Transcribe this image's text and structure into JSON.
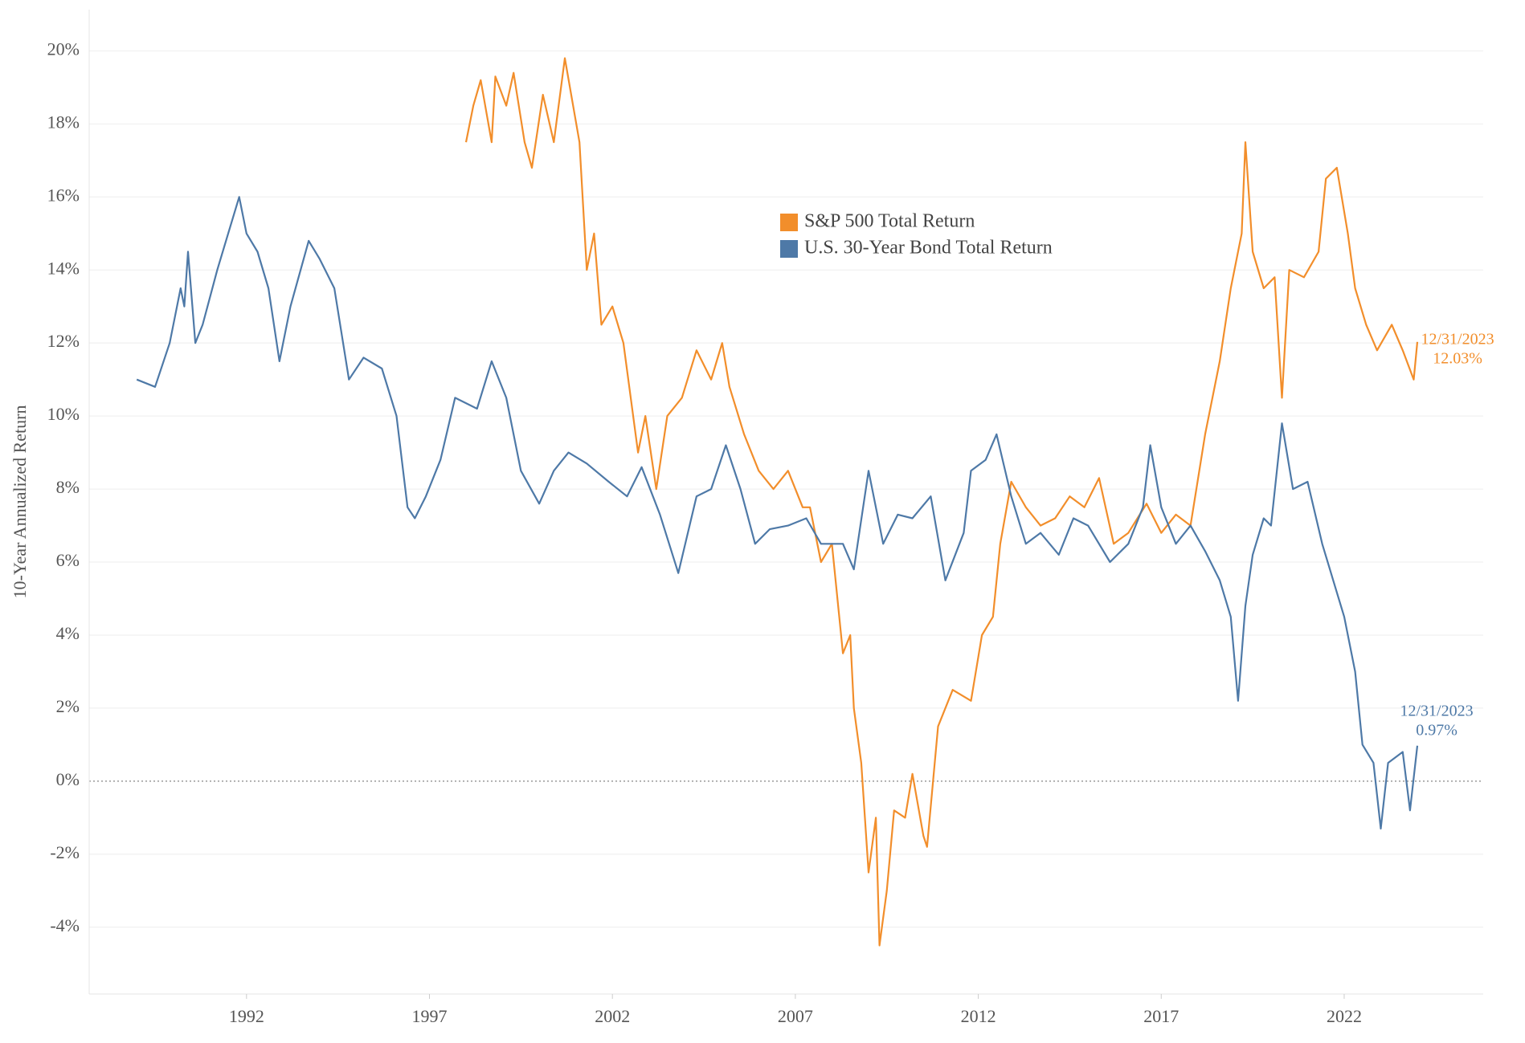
{
  "chart_data": {
    "type": "line",
    "y_label": "10-Year Annualized Return",
    "xlim": [
      1987.7,
      2025.8
    ],
    "xticks": [
      1992,
      1997,
      2002,
      2007,
      2012,
      2017,
      2022
    ],
    "ylim": [
      -5.83,
      21.13
    ],
    "yticks": [
      {
        "value": -4,
        "label": "-4%"
      },
      {
        "value": -2,
        "label": "-2%"
      },
      {
        "value": 0,
        "label": "0%"
      },
      {
        "value": 2,
        "label": "2%"
      },
      {
        "value": 4,
        "label": "4%"
      },
      {
        "value": 6,
        "label": "6%"
      },
      {
        "value": 8,
        "label": "8%"
      },
      {
        "value": 10,
        "label": "10%"
      },
      {
        "value": 12,
        "label": "12%"
      },
      {
        "value": 14,
        "label": "14%"
      },
      {
        "value": 16,
        "label": "16%"
      },
      {
        "value": 18,
        "label": "18%"
      },
      {
        "value": 20,
        "label": "20%"
      }
    ],
    "grid": true,
    "legend": "top-center",
    "series": [
      {
        "name": "S&P 500 Total Return",
        "color": "#f28e2b",
        "annotation": [
          "12/31/2023",
          "12.03%"
        ],
        "x": [
          1998.0,
          1998.2,
          1998.4,
          1998.7,
          1998.8,
          1999.1,
          1999.3,
          1999.6,
          1999.8,
          2000.1,
          2000.4,
          2000.7,
          2001.1,
          2001.3,
          2001.5,
          2001.7,
          2002.0,
          2002.3,
          2002.5,
          2002.7,
          2002.9,
          2003.2,
          2003.5,
          2003.9,
          2004.3,
          2004.7,
          2005.0,
          2005.2,
          2005.6,
          2006.0,
          2006.4,
          2006.8,
          2007.2,
          2007.4,
          2007.7,
          2008.0,
          2008.3,
          2008.5,
          2008.6,
          2008.8,
          2009.0,
          2009.2,
          2009.3,
          2009.5,
          2009.7,
          2010.0,
          2010.2,
          2010.5,
          2010.6,
          2010.9,
          2011.3,
          2011.8,
          2012.1,
          2012.4,
          2012.6,
          2012.9,
          2013.3,
          2013.7,
          2014.1,
          2014.5,
          2014.9,
          2015.3,
          2015.7,
          2016.1,
          2016.6,
          2017.0,
          2017.4,
          2017.8,
          2018.2,
          2018.6,
          2018.9,
          2019.2,
          2019.3,
          2019.5,
          2019.8,
          2020.1,
          2020.3,
          2020.5,
          2020.9,
          2021.3,
          2021.5,
          2021.8,
          2022.1,
          2022.3,
          2022.6,
          2022.9,
          2023.3,
          2023.6,
          2023.9,
          2024.0
        ],
        "values": [
          17.5,
          18.5,
          19.2,
          17.5,
          19.3,
          18.5,
          19.4,
          17.5,
          16.8,
          18.8,
          17.5,
          19.8,
          17.5,
          14.0,
          15.0,
          12.5,
          13.0,
          12.0,
          10.5,
          9.0,
          10.0,
          8.0,
          10.0,
          10.5,
          11.8,
          11.0,
          12.0,
          10.8,
          9.5,
          8.5,
          8.0,
          8.5,
          7.5,
          7.5,
          6.0,
          6.5,
          3.5,
          4.0,
          2.0,
          0.5,
          -2.5,
          -1.0,
          -4.5,
          -3.0,
          -0.8,
          -1.0,
          0.2,
          -1.5,
          -1.8,
          1.5,
          2.5,
          2.2,
          4.0,
          4.5,
          6.5,
          8.2,
          7.5,
          7.0,
          7.2,
          7.8,
          7.5,
          8.3,
          6.5,
          6.8,
          7.6,
          6.8,
          7.3,
          7.0,
          9.5,
          11.5,
          13.5,
          15.0,
          17.5,
          14.5,
          13.5,
          13.8,
          10.5,
          14.0,
          13.8,
          14.5,
          16.5,
          16.8,
          15.0,
          13.5,
          12.5,
          11.8,
          12.5,
          11.8,
          11.0,
          12.03
        ]
      },
      {
        "name": "U.S. 30-Year Bond Total Return",
        "color": "#4e79a7",
        "annotation": [
          "12/31/2023",
          "0.97%"
        ],
        "x": [
          1989.0,
          1989.5,
          1989.9,
          1990.2,
          1990.3,
          1990.4,
          1990.6,
          1990.8,
          1991.2,
          1991.5,
          1991.8,
          1992.0,
          1992.3,
          1992.6,
          1992.9,
          1993.2,
          1993.7,
          1994.0,
          1994.4,
          1994.8,
          1995.2,
          1995.7,
          1996.1,
          1996.4,
          1996.6,
          1996.9,
          1997.3,
          1997.7,
          1998.3,
          1998.7,
          1999.1,
          1999.5,
          2000.0,
          2000.4,
          2000.8,
          2001.3,
          2001.9,
          2002.4,
          2002.8,
          2003.3,
          2003.8,
          2004.3,
          2004.7,
          2005.1,
          2005.5,
          2005.9,
          2006.3,
          2006.8,
          2007.3,
          2007.7,
          2008.3,
          2008.6,
          2009.0,
          2009.4,
          2009.8,
          2010.2,
          2010.7,
          2011.1,
          2011.6,
          2011.8,
          2012.2,
          2012.5,
          2012.9,
          2013.3,
          2013.7,
          2014.2,
          2014.6,
          2015.0,
          2015.6,
          2016.1,
          2016.5,
          2016.7,
          2017.0,
          2017.4,
          2017.8,
          2018.2,
          2018.6,
          2018.9,
          2019.1,
          2019.3,
          2019.5,
          2019.8,
          2020.0,
          2020.3,
          2020.6,
          2021.0,
          2021.4,
          2021.7,
          2022.0,
          2022.3,
          2022.5,
          2022.8,
          2023.0,
          2023.2,
          2023.6,
          2023.8,
          2024.0
        ],
        "values": [
          11.0,
          10.8,
          12.0,
          13.5,
          13.0,
          14.5,
          12.0,
          12.5,
          14.0,
          15.0,
          16.0,
          15.0,
          14.5,
          13.5,
          11.5,
          13.0,
          14.8,
          14.3,
          13.5,
          11.0,
          11.6,
          11.3,
          10.0,
          7.5,
          7.2,
          7.8,
          8.8,
          10.5,
          10.2,
          11.5,
          10.5,
          8.5,
          7.6,
          8.5,
          9.0,
          8.7,
          8.2,
          7.8,
          8.6,
          7.3,
          5.7,
          7.8,
          8.0,
          9.2,
          8.0,
          6.5,
          6.9,
          7.0,
          7.2,
          6.5,
          6.5,
          5.8,
          8.5,
          6.5,
          7.3,
          7.2,
          7.8,
          5.5,
          6.8,
          8.5,
          8.8,
          9.5,
          7.8,
          6.5,
          6.8,
          6.2,
          7.2,
          7.0,
          6.0,
          6.5,
          7.5,
          9.2,
          7.5,
          6.5,
          7.0,
          6.3,
          5.5,
          4.5,
          2.2,
          4.8,
          6.2,
          7.2,
          7.0,
          9.8,
          8.0,
          8.2,
          6.5,
          5.5,
          4.5,
          3.0,
          1.0,
          0.5,
          -1.3,
          0.5,
          0.8,
          -0.8,
          0.97
        ]
      }
    ]
  }
}
